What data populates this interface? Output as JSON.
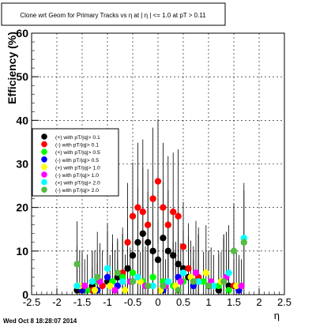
{
  "chart_data": {
    "type": "scatter",
    "title": "Clone wrt Geom for Primary Tracks vs   η at | η | <= 1.0 at pT > 0.11",
    "xlabel": "η",
    "ylabel": "Efficiency (%)",
    "xlim": [
      -2.5,
      2.5
    ],
    "ylim": [
      0,
      60
    ],
    "xticks": [
      "-2.5",
      "-2",
      "-1.5",
      "-1",
      "-0.5",
      "0",
      "0.5",
      "1",
      "1.5",
      "2",
      "2.5"
    ],
    "yticks": [
      "0",
      "10",
      "20",
      "30",
      "40",
      "50",
      "60"
    ],
    "grid": true,
    "legend_position": "middle-left",
    "timestamp": "Wed Oct  8 18:28:07 2014",
    "series": [
      {
        "name": "(+) with pT/|q|> 0.1",
        "color": "#000000",
        "x": [
          -1.6,
          -1.3,
          -1.0,
          -0.8,
          -0.6,
          -0.5,
          -0.4,
          -0.3,
          -0.2,
          -0.1,
          0.0,
          0.1,
          0.2,
          0.3,
          0.4,
          0.5,
          0.6,
          0.8,
          1.0,
          1.2,
          1.4,
          1.6
        ],
        "y": [
          1,
          2,
          3,
          4,
          6,
          9,
          12,
          14,
          12,
          10,
          8,
          13,
          10,
          9,
          7,
          6,
          4,
          3,
          2,
          1,
          2,
          1
        ]
      },
      {
        "name": "(-) with pT/|q|> 0.1",
        "color": "#ff0000",
        "x": [
          -1.5,
          -1.3,
          -1.1,
          -0.9,
          -0.7,
          -0.6,
          -0.5,
          -0.4,
          -0.3,
          -0.2,
          -0.1,
          0.0,
          0.1,
          0.2,
          0.3,
          0.4,
          0.5,
          0.6,
          0.8,
          1.0,
          1.3,
          1.5
        ],
        "y": [
          1,
          1,
          2,
          3,
          5,
          12,
          18,
          20,
          19,
          16,
          22,
          26,
          20,
          16,
          19,
          18,
          11,
          6,
          4,
          2,
          3,
          2
        ]
      },
      {
        "name": "(+) with pT/|q|> 0.5",
        "color": "#00ff00",
        "x": [
          -1.6,
          -1.4,
          -1.2,
          -0.9,
          -0.7,
          -0.5,
          -0.3,
          -0.1,
          0.1,
          0.3,
          0.5,
          0.7,
          0.9,
          1.2,
          1.4,
          1.6
        ],
        "y": [
          2,
          1,
          3,
          3,
          4,
          5,
          3,
          4,
          3,
          2,
          3,
          2,
          3,
          2,
          1,
          2
        ]
      },
      {
        "name": "(-) with pT/|q|> 0.5",
        "color": "#0000ff",
        "x": [
          -1.5,
          -1.2,
          -1.0,
          -0.8,
          -0.5,
          -0.2,
          0.1,
          0.4,
          0.7,
          1.0,
          1.3,
          1.6
        ],
        "y": [
          1,
          1,
          4,
          2,
          3,
          2,
          1,
          4,
          2,
          2,
          3,
          1
        ]
      },
      {
        "name": "(+) with pT/|q|> 1.0",
        "color": "#ffff00",
        "x": [
          -1.55,
          -1.25,
          -0.95,
          -0.65,
          -0.35,
          0.05,
          0.35,
          0.65,
          0.95,
          1.25,
          1.55
        ],
        "y": [
          2,
          1,
          2,
          1,
          3,
          1,
          2,
          4,
          5,
          3,
          2
        ]
      },
      {
        "name": "(-) with pT/|q|> 1.0",
        "color": "#ff00ff",
        "x": [
          -1.45,
          -1.15,
          -0.85,
          -0.55,
          -0.25,
          0.15,
          0.45,
          0.75,
          1.05,
          1.35,
          1.65
        ],
        "y": [
          2,
          3,
          1,
          3,
          2,
          2,
          3,
          5,
          3,
          4,
          2
        ]
      },
      {
        "name": "(+) with pT/|q|> 2.0",
        "color": "#00ffff",
        "x": [
          -1.6,
          -1.3,
          -1.0,
          -0.7,
          -0.4,
          -0.1,
          0.2,
          0.5,
          0.8,
          1.1,
          1.4,
          1.7
        ],
        "y": [
          2,
          3,
          6,
          3,
          4,
          2,
          3,
          5,
          3,
          2,
          5,
          13
        ]
      },
      {
        "name": "(-) with pT/|q|> 2.0",
        "color": "#55bb44",
        "x": [
          -1.6,
          -1.2,
          -0.8,
          -0.5,
          -0.2,
          0.1,
          0.4,
          0.7,
          1.0,
          1.3,
          1.5,
          1.7
        ],
        "y": [
          7,
          4,
          5,
          3,
          2,
          2,
          1,
          3,
          2,
          3,
          10,
          12
        ]
      }
    ]
  }
}
